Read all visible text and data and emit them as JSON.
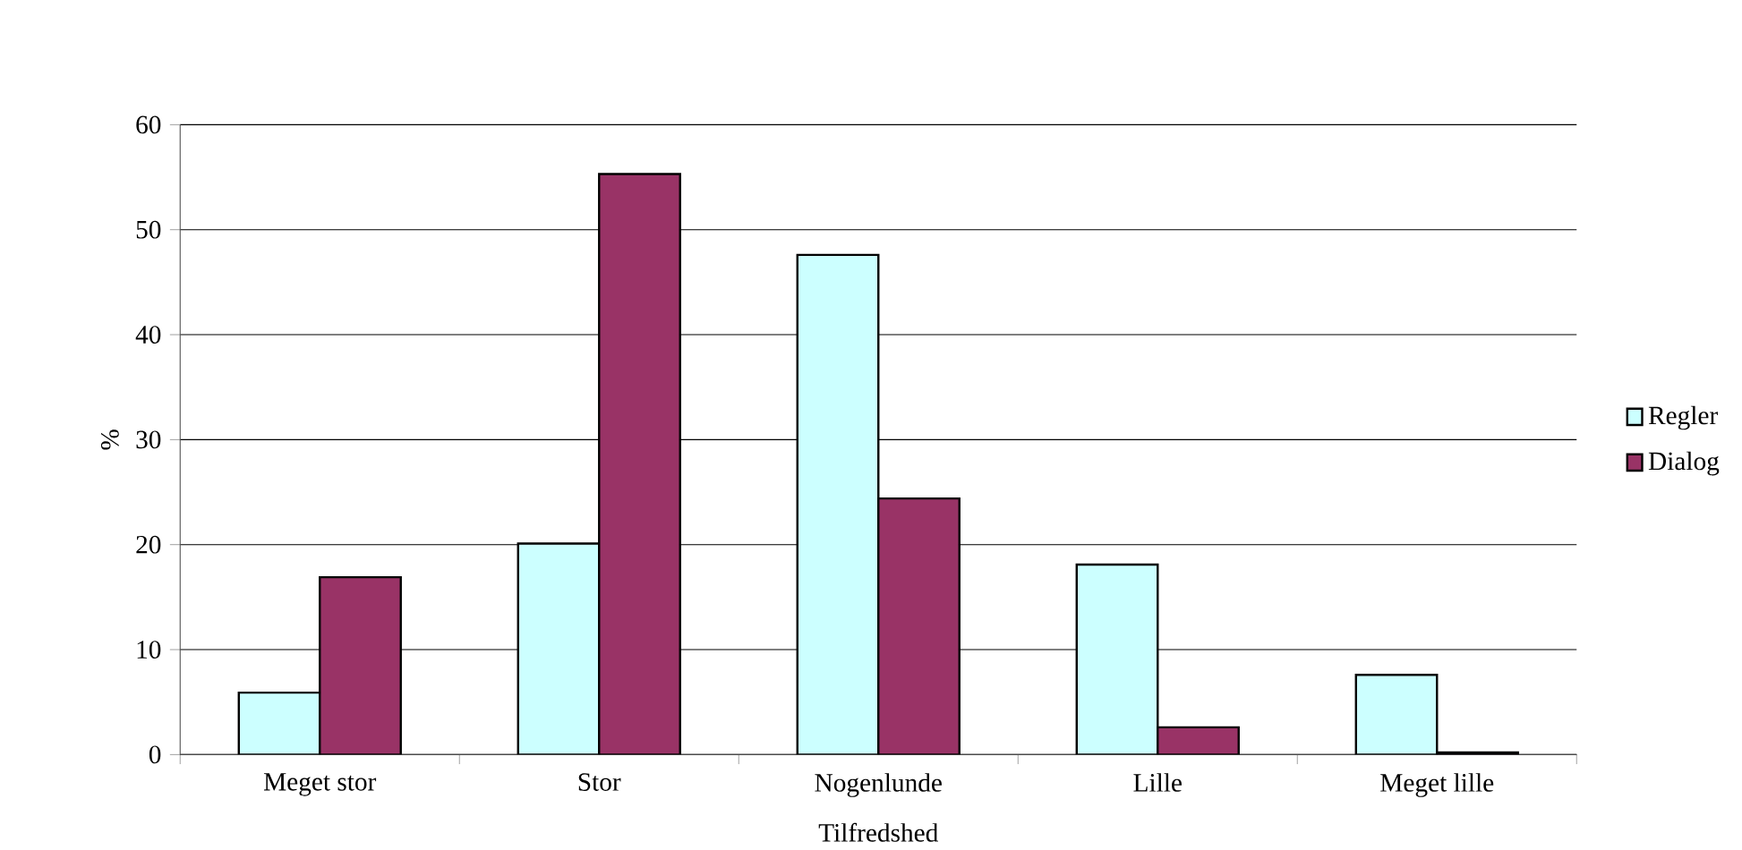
{
  "chart_data": {
    "type": "bar",
    "xlabel": "Tilfredshed",
    "ylabel": "%",
    "categories": [
      "Meget stor",
      "Stor",
      "Nogenlunde",
      "Lille",
      "Meget lille"
    ],
    "series": [
      {
        "name": "Regler",
        "color": "#ccffff",
        "values": [
          5.9,
          20.1,
          47.6,
          18.1,
          7.6
        ]
      },
      {
        "name": "Dialog",
        "color": "#993366",
        "values": [
          16.9,
          55.3,
          24.4,
          2.6,
          0.2
        ]
      }
    ],
    "ylim": [
      0,
      60
    ],
    "yticks": [
      0,
      10,
      20,
      30,
      40,
      50,
      60
    ],
    "grid": "y",
    "legend": "right"
  }
}
